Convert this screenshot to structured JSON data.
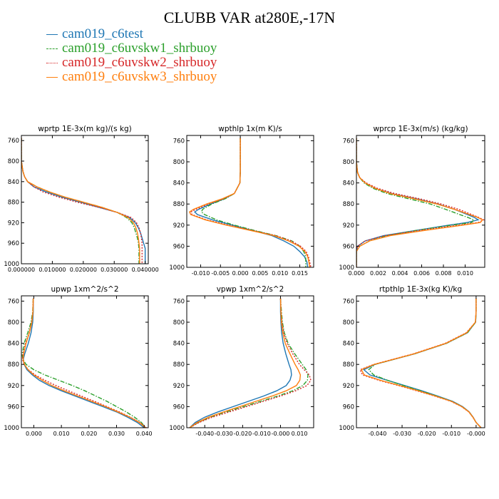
{
  "title": "CLUBB VAR at280E,-17N",
  "legend": [
    {
      "name": "cam019_c6test",
      "color": "#1f77b4",
      "dash": "solid"
    },
    {
      "name": "cam019_c6uvskw1_shrbuoy",
      "color": "#2ca02c",
      "dash": "dashdot"
    },
    {
      "name": "cam019_c6uvskw2_shrbuoy",
      "color": "#d62728",
      "dash": "dotted"
    },
    {
      "name": "cam019_c6uvskw3_shrbuoy",
      "color": "#ff7f0e",
      "dash": "solid"
    }
  ],
  "chart_data": [
    {
      "type": "line",
      "title": "wprtp  1E-3x(m kg)/(s kg)",
      "y_axis": "pressure",
      "ylim": [
        1000,
        750
      ],
      "yticks": [
        760,
        800,
        840,
        880,
        920,
        960,
        1000
      ],
      "xlim": [
        0,
        0.041
      ],
      "xticks": [
        0,
        0.01,
        0.02,
        0.03,
        0.04
      ],
      "xtick_labels": [
        "0.000000",
        "0.010000",
        "0.020000",
        "0.030000",
        "0.040000"
      ],
      "y": [
        755,
        800,
        820,
        830,
        840,
        850,
        860,
        870,
        880,
        890,
        900,
        910,
        920,
        930,
        940,
        950,
        960,
        970,
        980,
        990,
        1000
      ],
      "series": [
        {
          "name": "cam019_c6test",
          "x": [
            0,
            0,
            0.0005,
            0.001,
            0.002,
            0.004,
            0.008,
            0.013,
            0.019,
            0.025,
            0.031,
            0.035,
            0.0368,
            0.0378,
            0.0385,
            0.039,
            0.0395,
            0.04,
            0.04,
            0.04,
            0.04
          ]
        },
        {
          "name": "cam019_c6uvskw1_shrbuoy",
          "x": [
            0,
            0,
            0.0005,
            0.001,
            0.002,
            0.005,
            0.009,
            0.014,
            0.02,
            0.026,
            0.031,
            0.034,
            0.0357,
            0.0365,
            0.037,
            0.0375,
            0.0378,
            0.038,
            0.038,
            0.038,
            0.038
          ]
        },
        {
          "name": "cam019_c6uvskw2_shrbuoy",
          "x": [
            0,
            0,
            0.0005,
            0.001,
            0.002,
            0.004,
            0.007,
            0.012,
            0.018,
            0.025,
            0.031,
            0.0355,
            0.0372,
            0.038,
            0.0385,
            0.0388,
            0.039,
            0.039,
            0.039,
            0.039,
            0.039
          ]
        },
        {
          "name": "cam019_c6uvskw3_shrbuoy",
          "x": [
            0,
            0,
            0.0005,
            0.001,
            0.002,
            0.005,
            0.009,
            0.014,
            0.02,
            0.026,
            0.031,
            0.0345,
            0.0362,
            0.037,
            0.0375,
            0.0378,
            0.038,
            0.0382,
            0.0382,
            0.0382,
            0.0382
          ]
        }
      ]
    },
    {
      "type": "line",
      "title": "wpthlp  1x(m K)/s",
      "y_axis": "pressure",
      "ylim": [
        1000,
        750
      ],
      "yticks": [
        760,
        800,
        840,
        880,
        920,
        960,
        1000
      ],
      "xlim": [
        -0.0135,
        0.0185
      ],
      "xticks": [
        -0.01,
        -0.005,
        0,
        0.005,
        0.01,
        0.015
      ],
      "xtick_labels": [
        "-0.010",
        "-0.005",
        "0.000",
        "0.005",
        "0.010",
        "0.015"
      ],
      "y": [
        755,
        780,
        800,
        820,
        840,
        860,
        870,
        880,
        890,
        895,
        900,
        910,
        920,
        930,
        940,
        950,
        960,
        970,
        980,
        990,
        1000
      ],
      "series": [
        {
          "name": "cam019_c6test",
          "x": [
            0,
            0,
            0,
            0,
            -0.0001,
            -0.0015,
            -0.004,
            -0.0075,
            -0.0105,
            -0.0115,
            -0.0108,
            -0.007,
            -0.002,
            0.003,
            0.008,
            0.011,
            0.0135,
            0.015,
            0.0162,
            0.0168,
            0.017
          ]
        },
        {
          "name": "cam019_c6uvskw1_shrbuoy",
          "x": [
            0,
            0,
            0,
            0,
            -0.0001,
            -0.0015,
            -0.0038,
            -0.0072,
            -0.0095,
            -0.0098,
            -0.009,
            -0.006,
            -0.0015,
            0.0035,
            0.009,
            0.013,
            0.015,
            0.016,
            0.0165,
            0.0165,
            0.0165
          ]
        },
        {
          "name": "cam019_c6uvskw2_shrbuoy",
          "x": [
            0,
            0,
            0,
            0,
            -0.0001,
            -0.0015,
            -0.0042,
            -0.008,
            -0.0112,
            -0.0124,
            -0.0122,
            -0.0085,
            -0.003,
            0.003,
            0.009,
            0.0128,
            0.0152,
            0.0166,
            0.0172,
            0.0175,
            0.0178
          ]
        },
        {
          "name": "cam019_c6uvskw3_shrbuoy",
          "x": [
            0,
            0,
            0,
            0,
            -0.0001,
            -0.0015,
            -0.0045,
            -0.0085,
            -0.0118,
            -0.0128,
            -0.0125,
            -0.0088,
            -0.0035,
            0.0025,
            0.0085,
            0.0122,
            0.0148,
            0.0163,
            0.017,
            0.0173,
            0.0175
          ]
        }
      ]
    },
    {
      "type": "line",
      "title": "wprcp  1E-3x(m/s) (kg/kg)",
      "y_axis": "pressure",
      "ylim": [
        1000,
        750
      ],
      "yticks": [
        760,
        800,
        840,
        880,
        920,
        960,
        1000
      ],
      "xlim": [
        0,
        0.0118
      ],
      "xticks": [
        0,
        0.002,
        0.004,
        0.006,
        0.008,
        0.01
      ],
      "xtick_labels": [
        "0.000",
        "0.002",
        "0.004",
        "0.006",
        "0.008",
        "0.010"
      ],
      "y": [
        755,
        800,
        820,
        830,
        840,
        850,
        860,
        870,
        880,
        890,
        900,
        905,
        910,
        915,
        920,
        930,
        940,
        950,
        960,
        970,
        980,
        990,
        1000
      ],
      "series": [
        {
          "name": "cam019_c6test",
          "x": [
            0,
            0,
            0.0001,
            0.0003,
            0.0008,
            0.0017,
            0.0032,
            0.0055,
            0.0075,
            0.009,
            0.0102,
            0.0108,
            0.0112,
            0.0102,
            0.0085,
            0.0055,
            0.0025,
            0.0008,
            0.0001,
            0,
            0,
            0,
            0
          ]
        },
        {
          "name": "cam019_c6uvskw1_shrbuoy",
          "x": [
            0,
            0,
            0.0001,
            0.0003,
            0.0007,
            0.0015,
            0.0028,
            0.0048,
            0.0068,
            0.0082,
            0.0095,
            0.0102,
            0.0108,
            0.0106,
            0.0088,
            0.0055,
            0.0028,
            0.0012,
            0.0003,
            0,
            0,
            0,
            0
          ]
        },
        {
          "name": "cam019_c6uvskw2_shrbuoy",
          "x": [
            0,
            0,
            0.0001,
            0.0003,
            0.0009,
            0.0019,
            0.0035,
            0.0058,
            0.0078,
            0.0094,
            0.0106,
            0.0112,
            0.0117,
            0.0112,
            0.0094,
            0.0058,
            0.0026,
            0.0008,
            0.0001,
            0,
            0,
            0,
            0
          ]
        },
        {
          "name": "cam019_c6uvskw3_shrbuoy",
          "x": [
            0,
            0,
            0.0001,
            0.0003,
            0.0008,
            0.0017,
            0.0031,
            0.0053,
            0.0074,
            0.009,
            0.0104,
            0.0111,
            0.0116,
            0.0114,
            0.0098,
            0.0063,
            0.0031,
            0.0012,
            0.0003,
            0,
            0,
            0,
            0
          ]
        }
      ]
    },
    {
      "type": "line",
      "title": "upwp  1xm^2/s^2",
      "y_axis": "pressure",
      "ylim": [
        1000,
        750
      ],
      "yticks": [
        760,
        800,
        840,
        880,
        920,
        960,
        1000
      ],
      "xlim": [
        -0.0045,
        0.0415
      ],
      "xticks": [
        0,
        0.01,
        0.02,
        0.03,
        0.04
      ],
      "xtick_labels": [
        "0.000",
        "0.010",
        "0.020",
        "0.030",
        "0.040"
      ],
      "y": [
        755,
        780,
        800,
        820,
        840,
        860,
        870,
        880,
        890,
        900,
        910,
        920,
        930,
        940,
        950,
        960,
        970,
        980,
        990,
        1000
      ],
      "series": [
        {
          "name": "cam019_c6test",
          "x": [
            -0.0002,
            -0.0002,
            -0.0004,
            -0.001,
            -0.002,
            -0.0033,
            -0.0038,
            -0.0035,
            -0.0025,
            -0.0005,
            0.002,
            0.0055,
            0.01,
            0.015,
            0.02,
            0.025,
            0.03,
            0.034,
            0.0375,
            0.04
          ]
        },
        {
          "name": "cam019_c6uvskw1_shrbuoy",
          "x": [
            -0.0002,
            -0.0004,
            -0.001,
            -0.0022,
            -0.0035,
            -0.0042,
            -0.004,
            -0.0028,
            0,
            0.004,
            0.009,
            0.014,
            0.0185,
            0.0225,
            0.0265,
            0.03,
            0.0335,
            0.0365,
            0.039,
            0.0405
          ]
        },
        {
          "name": "cam019_c6uvskw2_shrbuoy",
          "x": [
            -0.0002,
            -0.0003,
            -0.0008,
            -0.0017,
            -0.003,
            -0.0039,
            -0.0041,
            -0.0035,
            -0.002,
            0.0005,
            0.004,
            0.008,
            0.0125,
            0.0172,
            0.022,
            0.0265,
            0.031,
            0.035,
            0.0385,
            0.0408
          ]
        },
        {
          "name": "cam019_c6uvskw3_shrbuoy",
          "x": [
            -0.0002,
            -0.0003,
            -0.0007,
            -0.0016,
            -0.0028,
            -0.0037,
            -0.0039,
            -0.0034,
            -0.0021,
            0,
            0.003,
            0.0065,
            0.011,
            0.016,
            0.021,
            0.026,
            0.0305,
            0.0348,
            0.0382,
            0.0405
          ]
        }
      ]
    },
    {
      "type": "line",
      "title": "vpwp  1xm^2/s^2",
      "y_axis": "pressure",
      "ylim": [
        1000,
        750
      ],
      "yticks": [
        760,
        800,
        840,
        880,
        920,
        960,
        1000
      ],
      "xlim": [
        -0.0495,
        0.0175
      ],
      "xticks": [
        -0.04,
        -0.03,
        -0.02,
        -0.01,
        0,
        0.01
      ],
      "xtick_labels": [
        "-0.040",
        "-0.030",
        "-0.020",
        "-0.010",
        "-0.000",
        "0.010"
      ],
      "y": [
        755,
        780,
        800,
        820,
        840,
        860,
        880,
        890,
        900,
        910,
        920,
        930,
        940,
        950,
        960,
        970,
        980,
        990,
        1000
      ],
      "series": [
        {
          "name": "cam019_c6test",
          "x": [
            0,
            0,
            0.0002,
            0.0006,
            0.0014,
            0.0028,
            0.0045,
            0.0055,
            0.0058,
            0.005,
            0.003,
            -0.002,
            -0.009,
            -0.017,
            -0.025,
            -0.033,
            -0.04,
            -0.045,
            -0.048
          ]
        },
        {
          "name": "cam019_c6uvskw1_shrbuoy",
          "x": [
            0,
            0.0005,
            0.001,
            0.002,
            0.004,
            0.0075,
            0.0115,
            0.0135,
            0.0145,
            0.0142,
            0.0118,
            0.0065,
            -0.0015,
            -0.0105,
            -0.0195,
            -0.0285,
            -0.037,
            -0.0435,
            -0.048
          ]
        },
        {
          "name": "cam019_c6uvskw2_shrbuoy",
          "x": [
            0,
            0.0003,
            0.0008,
            0.0017,
            0.0035,
            0.0065,
            0.01,
            0.0125,
            0.0152,
            0.016,
            0.014,
            0.008,
            0,
            -0.009,
            -0.018,
            -0.027,
            -0.036,
            -0.043,
            -0.048
          ]
        },
        {
          "name": "cam019_c6uvskw3_shrbuoy",
          "x": [
            0,
            0.0002,
            0.0005,
            0.0012,
            0.0025,
            0.005,
            0.0077,
            0.0093,
            0.0105,
            0.0102,
            0.0084,
            0.003,
            -0.0045,
            -0.013,
            -0.0215,
            -0.03,
            -0.038,
            -0.044,
            -0.048
          ]
        }
      ]
    },
    {
      "type": "line",
      "title": "rtpthlp  1E-3x(kg K)/kg",
      "y_axis": "pressure",
      "ylim": [
        1000,
        750
      ],
      "yticks": [
        760,
        800,
        840,
        880,
        920,
        960,
        1000
      ],
      "xlim": [
        -0.0485,
        0.0035
      ],
      "xticks": [
        -0.04,
        -0.03,
        -0.02,
        -0.01,
        0
      ],
      "xtick_labels": [
        "-0.040",
        "-0.030",
        "-0.020",
        "-0.010",
        "-0.000"
      ],
      "y": [
        755,
        780,
        800,
        820,
        840,
        860,
        870,
        880,
        890,
        900,
        910,
        920,
        930,
        940,
        950,
        960,
        970,
        980,
        990,
        1000
      ],
      "series": [
        {
          "name": "cam019_c6test",
          "x": [
            0,
            0,
            -0.0002,
            -0.0035,
            -0.012,
            -0.025,
            -0.033,
            -0.041,
            -0.0455,
            -0.043,
            -0.036,
            -0.029,
            -0.022,
            -0.0155,
            -0.0095,
            -0.0055,
            -0.0028,
            -0.0012,
            0,
            0.002
          ]
        },
        {
          "name": "cam019_c6uvskw1_shrbuoy",
          "x": [
            0,
            0,
            -0.0002,
            -0.0035,
            -0.012,
            -0.025,
            -0.033,
            -0.041,
            -0.0435,
            -0.0415,
            -0.036,
            -0.0295,
            -0.0225,
            -0.016,
            -0.0098,
            -0.0057,
            -0.0029,
            -0.0013,
            0,
            0.002
          ]
        },
        {
          "name": "cam019_c6uvskw2_shrbuoy",
          "x": [
            0,
            0,
            -0.0003,
            -0.004,
            -0.0125,
            -0.0255,
            -0.0335,
            -0.0415,
            -0.047,
            -0.046,
            -0.0395,
            -0.0315,
            -0.024,
            -0.0168,
            -0.0102,
            -0.0059,
            -0.003,
            -0.0013,
            0,
            0.002
          ]
        },
        {
          "name": "cam019_c6uvskw3_shrbuoy",
          "x": [
            0,
            0,
            -0.0003,
            -0.0038,
            -0.0122,
            -0.0252,
            -0.0332,
            -0.0413,
            -0.0465,
            -0.0453,
            -0.0388,
            -0.031,
            -0.0235,
            -0.0165,
            -0.01,
            -0.0058,
            -0.0029,
            -0.0013,
            0,
            0.002
          ]
        }
      ]
    }
  ]
}
